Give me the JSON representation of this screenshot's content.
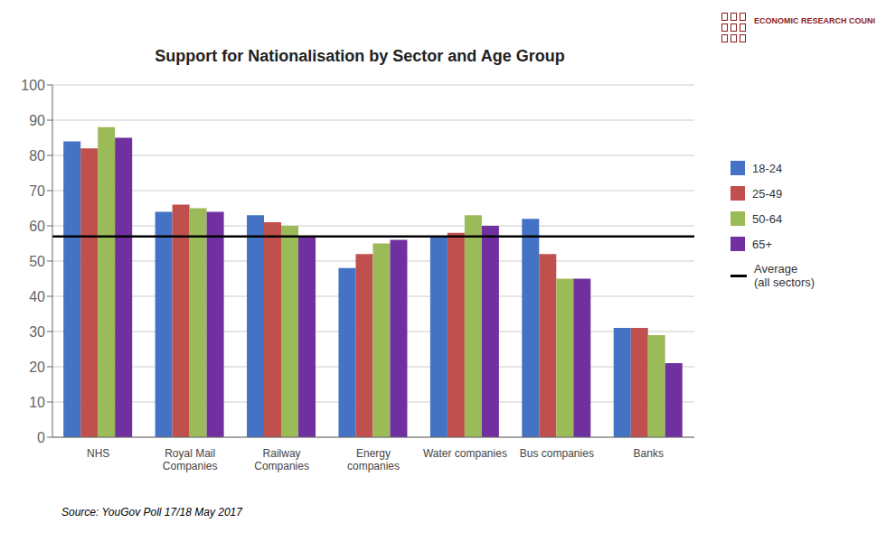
{
  "chart_data": {
    "type": "bar",
    "title": "Support for Nationalisation by Sector and Age Group",
    "categories": [
      "NHS",
      "Royal Mail\nCompanies",
      "Railway\nCompanies",
      "Energy\ncompanies",
      "Water companies",
      "Bus companies",
      "Banks"
    ],
    "series": [
      {
        "name": "18-24",
        "color": "#4472C4",
        "values": [
          84,
          64,
          63,
          48,
          57,
          62,
          31
        ]
      },
      {
        "name": "25-49",
        "color": "#C0504D",
        "values": [
          82,
          66,
          61,
          52,
          58,
          52,
          31
        ]
      },
      {
        "name": "50-64",
        "color": "#9BBB59",
        "values": [
          88,
          65,
          60,
          55,
          63,
          45,
          29
        ]
      },
      {
        "name": "65+",
        "color": "#7030A0",
        "values": [
          85,
          64,
          57,
          56,
          60,
          45,
          21
        ]
      }
    ],
    "average_line": {
      "value": 57,
      "label": "Average\n(all sectors)",
      "color": "#000000"
    },
    "ylim": [
      0,
      100
    ],
    "yticks": [
      0,
      10,
      20,
      30,
      40,
      50,
      60,
      70,
      80,
      90,
      100
    ],
    "grid": true,
    "legend": "right",
    "annotations": [
      "Source: YouGov Poll 17/18 May 2017",
      "ECONOMIC RESEARCH COUNCIL"
    ]
  }
}
